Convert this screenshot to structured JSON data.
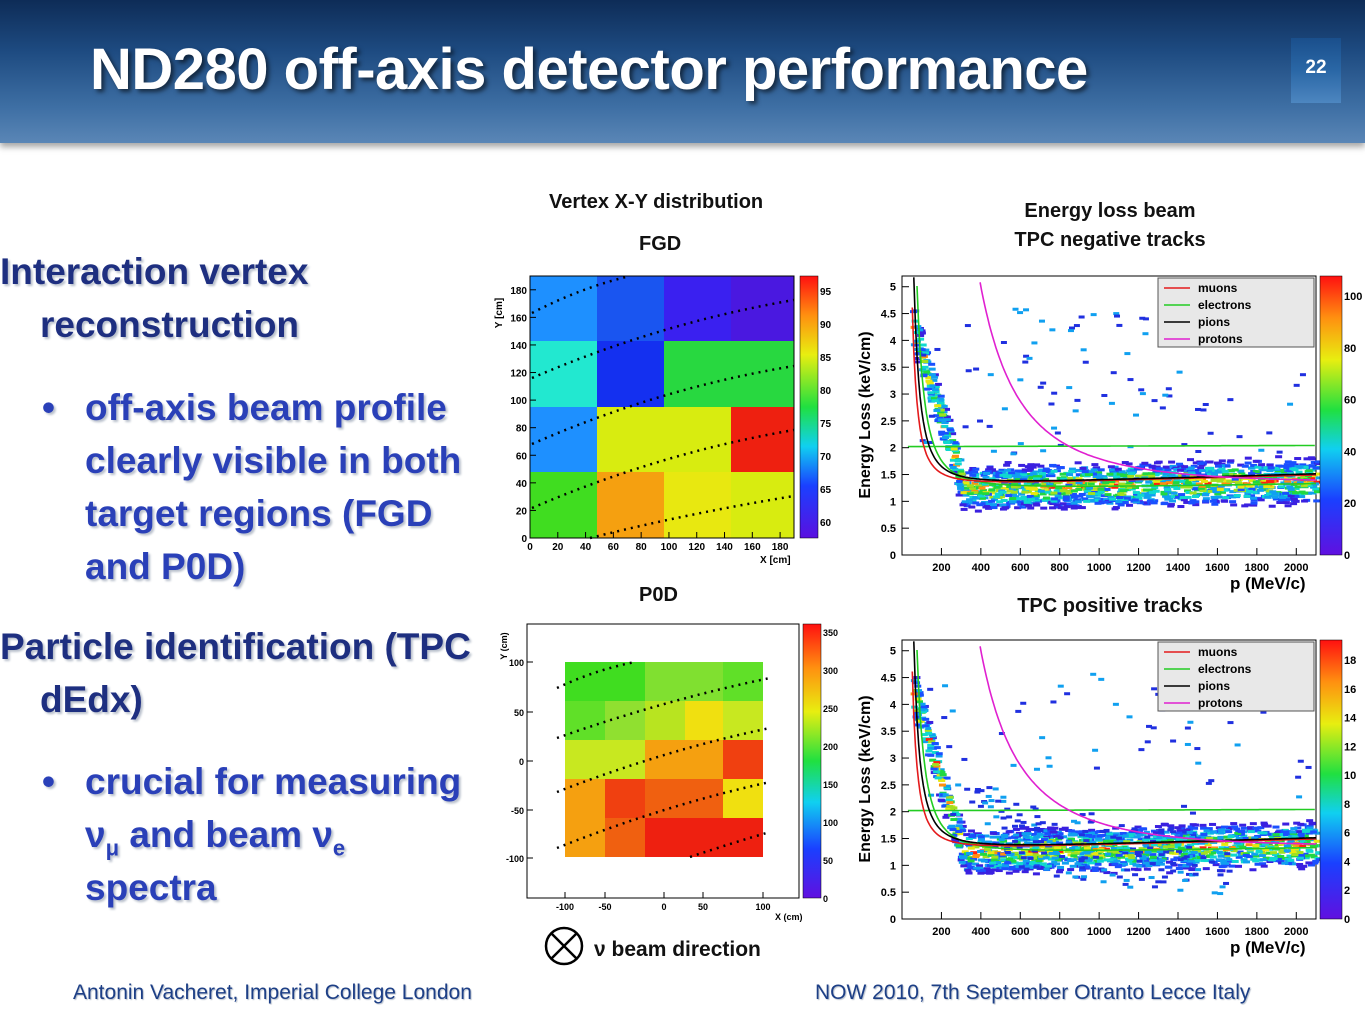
{
  "slide": {
    "title": "ND280 off-axis detector performance",
    "number": "22"
  },
  "bullets": {
    "b1_line1": "Interaction vertex",
    "b1_line2": "reconstruction",
    "b1a_line1": "off-axis beam profile",
    "b1a_line2": "clearly visible in both",
    "b1a_line3": "target regions (FGD",
    "b1a_line4": "and P0D)",
    "b2_line1": "Particle identification (TPC",
    "b2_line2": "dEdx)",
    "b2a_line1": "crucial for measuring",
    "b2a_line2_a": "ν",
    "b2a_line2_b": "μ",
    "b2a_line2_c": " and beam ν",
    "b2a_line2_d": "e",
    "b2a_line3": "spectra"
  },
  "labels": {
    "vertex_title": "Vertex  X-Y distribution",
    "fgd": "FGD",
    "p0d": "P0D",
    "energy_title_line1": "Energy loss beam",
    "energy_title_line2": "TPC negative tracks",
    "tpc_positive": "TPC positive tracks",
    "beam_direction": "ν beam direction"
  },
  "footer": {
    "left": "Antonin Vacheret, Imperial College London",
    "right": "NOW 2010, 7th September Otranto Lecce Italy"
  },
  "fgd_plot": {
    "xlabel": "X [cm]",
    "ylabel": "Y [cm]",
    "x_ticks": [
      "0",
      "20",
      "40",
      "60",
      "80",
      "100",
      "120",
      "140",
      "160",
      "180"
    ],
    "y_ticks": [
      "0",
      "20",
      "40",
      "60",
      "80",
      "100",
      "120",
      "140",
      "160",
      "180"
    ],
    "z_ticks": [
      "60",
      "65",
      "70",
      "75",
      "80",
      "85",
      "90",
      "95"
    ]
  },
  "p0d_plot": {
    "xlabel": "X (cm)",
    "ylabel": "Y (cm)",
    "x_ticks": [
      "-100",
      "-50",
      "0",
      "50",
      "100"
    ],
    "y_ticks": [
      "100",
      "50",
      "0",
      "-50",
      "-100"
    ],
    "z_ticks": [
      "0",
      "50",
      "100",
      "150",
      "200",
      "250",
      "300",
      "350"
    ]
  },
  "tpc_neg_plot": {
    "ylabel": "Energy Loss (keV/cm)",
    "xlabel": "p (MeV/c)",
    "x_ticks": [
      "200",
      "400",
      "600",
      "800",
      "1000",
      "1200",
      "1400",
      "1600",
      "1800",
      "2000"
    ],
    "y_ticks": [
      "0",
      "0.5",
      "1",
      "1.5",
      "2",
      "2.5",
      "3",
      "3.5",
      "4",
      "4.5",
      "5"
    ],
    "z_ticks": [
      "0",
      "20",
      "40",
      "60",
      "80",
      "100"
    ],
    "legend": [
      "muons",
      "electrons",
      "pions",
      "protons"
    ]
  },
  "tpc_pos_plot": {
    "ylabel": "Energy Loss (keV/cm)",
    "xlabel": "p (MeV/c)",
    "x_ticks": [
      "200",
      "400",
      "600",
      "800",
      "1000",
      "1200",
      "1400",
      "1600",
      "1800",
      "2000"
    ],
    "y_ticks": [
      "0",
      "0.5",
      "1",
      "1.5",
      "2",
      "2.5",
      "3",
      "3.5",
      "4",
      "4.5",
      "5"
    ],
    "z_ticks": [
      "0",
      "2",
      "4",
      "6",
      "8",
      "10",
      "12",
      "14",
      "16",
      "18"
    ],
    "legend": [
      "muons",
      "electrons",
      "pions",
      "protons"
    ]
  },
  "colors": {
    "muons": "#e41a1c",
    "electrons": "#22cc22",
    "pions": "#000000",
    "protons": "#e020d0"
  }
}
